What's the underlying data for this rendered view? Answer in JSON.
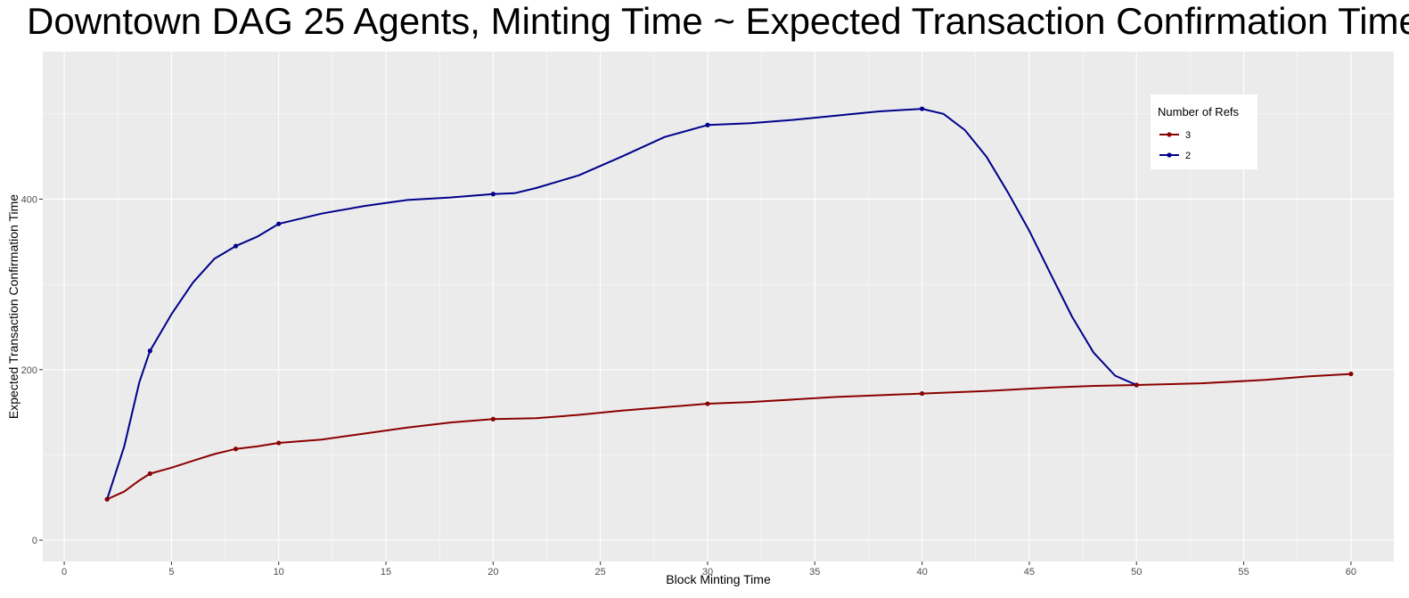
{
  "chart_data": {
    "type": "line",
    "title": "Downtown DAG 25 Agents, Minting Time ~ Expected Transaction Confirmation Time",
    "xlabel": "Block Minting Time",
    "ylabel": "Expected Transaction Confirmation Time",
    "xlim": [
      -1,
      62
    ],
    "ylim": [
      -25,
      573
    ],
    "x_ticks": [
      0,
      5,
      10,
      15,
      20,
      25,
      30,
      35,
      40,
      45,
      50,
      55,
      60
    ],
    "y_ticks": [
      0,
      200,
      400
    ],
    "grid": true,
    "legend": {
      "title": "Number of Refs",
      "placement": "top-right"
    },
    "series": [
      {
        "name": "3",
        "color": "#8B0000",
        "points": [
          [
            2,
            48
          ],
          [
            4,
            78
          ],
          [
            8,
            107
          ],
          [
            10,
            114
          ],
          [
            20,
            142
          ],
          [
            30,
            160
          ],
          [
            40,
            172
          ],
          [
            50,
            182
          ],
          [
            60,
            195
          ]
        ],
        "curve": [
          [
            2,
            48
          ],
          [
            2.8,
            57
          ],
          [
            3.5,
            70
          ],
          [
            4,
            78
          ],
          [
            5,
            85
          ],
          [
            6,
            93
          ],
          [
            7,
            101
          ],
          [
            8,
            107
          ],
          [
            9,
            110
          ],
          [
            10,
            114
          ],
          [
            12,
            118
          ],
          [
            14,
            125
          ],
          [
            16,
            132
          ],
          [
            18,
            138
          ],
          [
            20,
            142
          ],
          [
            22,
            143
          ],
          [
            24,
            147
          ],
          [
            26,
            152
          ],
          [
            28,
            156
          ],
          [
            30,
            160
          ],
          [
            32,
            162
          ],
          [
            34,
            165
          ],
          [
            36,
            168
          ],
          [
            38,
            170
          ],
          [
            40,
            172
          ],
          [
            43,
            175
          ],
          [
            46,
            179
          ],
          [
            48,
            181
          ],
          [
            50,
            182
          ],
          [
            53,
            184
          ],
          [
            56,
            188
          ],
          [
            58,
            192
          ],
          [
            60,
            195
          ]
        ]
      },
      {
        "name": "2",
        "color": "#00008B",
        "points": [
          [
            2,
            48
          ],
          [
            4,
            222
          ],
          [
            8,
            345
          ],
          [
            10,
            371
          ],
          [
            20,
            406
          ],
          [
            30,
            487
          ],
          [
            40,
            506
          ],
          [
            50,
            182
          ]
        ],
        "curve": [
          [
            2,
            48
          ],
          [
            2.8,
            110
          ],
          [
            3.5,
            185
          ],
          [
            4,
            222
          ],
          [
            5,
            265
          ],
          [
            6,
            302
          ],
          [
            7,
            330
          ],
          [
            8,
            345
          ],
          [
            9,
            356
          ],
          [
            10,
            371
          ],
          [
            12,
            383
          ],
          [
            14,
            392
          ],
          [
            16,
            399
          ],
          [
            18,
            402
          ],
          [
            20,
            406
          ],
          [
            21,
            407
          ],
          [
            22,
            413
          ],
          [
            24,
            428
          ],
          [
            26,
            450
          ],
          [
            28,
            473
          ],
          [
            30,
            487
          ],
          [
            32,
            489
          ],
          [
            34,
            493
          ],
          [
            36,
            498
          ],
          [
            38,
            503
          ],
          [
            40,
            506
          ],
          [
            41,
            500
          ],
          [
            42,
            481
          ],
          [
            43,
            450
          ],
          [
            44,
            408
          ],
          [
            45,
            363
          ],
          [
            46,
            312
          ],
          [
            47,
            262
          ],
          [
            48,
            220
          ],
          [
            49,
            193
          ],
          [
            50,
            182
          ]
        ]
      }
    ]
  }
}
